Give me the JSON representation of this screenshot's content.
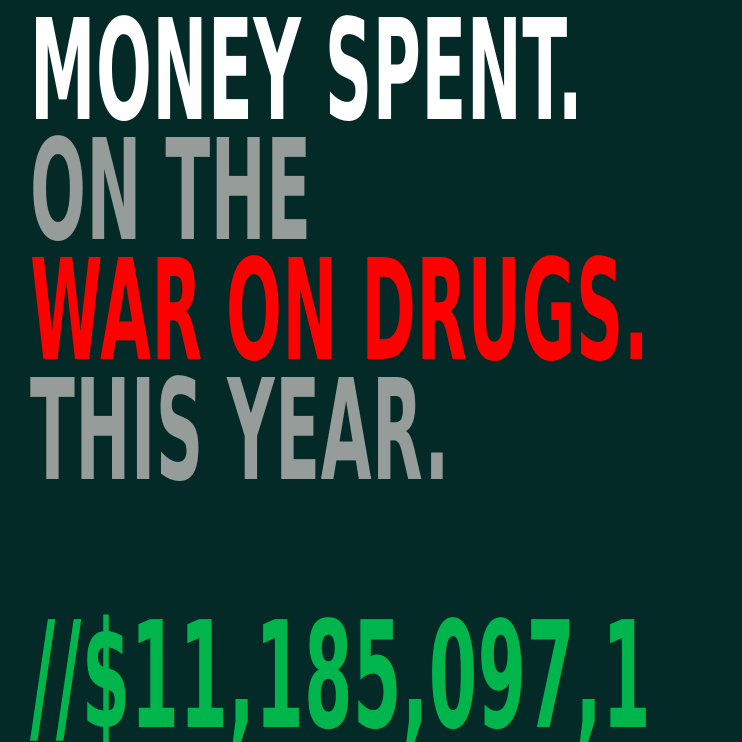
{
  "headline": {
    "line1": "MONEY SPENT.",
    "line2": "ON THE",
    "line3": "WAR ON DRUGS.",
    "line4": "THIS YEAR."
  },
  "counter": {
    "value": "//$11,185,097,1"
  },
  "colors": {
    "background": "#032a26",
    "line1": "#ffffff",
    "muted": "#959c9a",
    "highlight": "#ff0000",
    "counter": "#00b64c"
  }
}
